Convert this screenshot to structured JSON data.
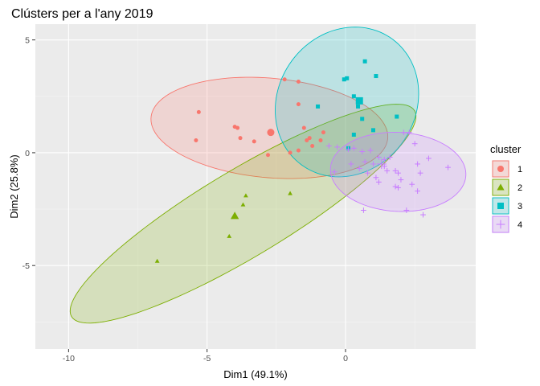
{
  "chart_data": {
    "type": "scatter",
    "title": "Clústers per a l'any 2019",
    "xlabel": "Dim1 (49.1%)",
    "ylabel": "Dim2 (25.8%)",
    "xlim": [
      -11.2,
      4.7
    ],
    "ylim": [
      -8.7,
      5.7
    ],
    "x_ticks": [
      -10,
      -5,
      0
    ],
    "x_tick_labels": [
      "-10",
      "-5",
      "0"
    ],
    "y_ticks": [
      -5,
      0,
      5
    ],
    "y_tick_labels": [
      "-5",
      "0",
      "5"
    ],
    "grid": true,
    "legend": {
      "title": "cluster",
      "position": "right"
    },
    "series": [
      {
        "name": "1",
        "color": "#F8766D",
        "shape": "circle",
        "points": [
          [
            -5.3,
            1.8
          ],
          [
            -5.4,
            0.55
          ],
          [
            -4.0,
            1.15
          ],
          [
            -3.9,
            1.1
          ],
          [
            -3.8,
            0.65
          ],
          [
            -3.3,
            0.5
          ],
          [
            -2.2,
            3.25
          ],
          [
            -1.7,
            3.15
          ],
          [
            -1.7,
            2.15
          ],
          [
            -1.5,
            1.1
          ],
          [
            -1.4,
            0.55
          ],
          [
            -1.3,
            0.65
          ],
          [
            -1.2,
            0.3
          ],
          [
            -0.9,
            0.55
          ],
          [
            -1.7,
            0.1
          ],
          [
            -2.0,
            0.0
          ],
          [
            -2.8,
            -0.1
          ],
          [
            -0.8,
            0.9
          ]
        ],
        "centroid": [
          -2.7,
          0.9
        ],
        "ellipse": {
          "cx": -2.75,
          "cy": 1.1,
          "rx": 4.3,
          "ry": 2.2,
          "angle_deg": -7
        }
      },
      {
        "name": "2",
        "color": "#7CAE00",
        "shape": "triangle",
        "points": [
          [
            -6.8,
            -4.8
          ],
          [
            -4.2,
            -3.7
          ],
          [
            -3.6,
            -1.9
          ],
          [
            -3.7,
            -2.3
          ],
          [
            -2.0,
            -1.8
          ]
        ],
        "centroid": [
          -4.0,
          -2.8
        ],
        "ellipse": {
          "cx": -3.7,
          "cy": -2.7,
          "rx": 7.7,
          "ry": 1.8,
          "angle_deg": 37
        }
      },
      {
        "name": "3",
        "color": "#00BFC4",
        "shape": "square",
        "points": [
          [
            -0.05,
            3.25
          ],
          [
            0.05,
            3.3
          ],
          [
            0.7,
            4.05
          ],
          [
            1.1,
            3.4
          ],
          [
            0.3,
            2.5
          ],
          [
            0.5,
            2.35
          ],
          [
            -1.0,
            2.05
          ],
          [
            0.45,
            2.05
          ],
          [
            0.6,
            1.5
          ],
          [
            0.3,
            0.8
          ],
          [
            1.0,
            1.0
          ],
          [
            1.85,
            1.6
          ],
          [
            0.1,
            0.2
          ]
        ],
        "centroid": [
          0.5,
          2.3
        ],
        "ellipse": {
          "cx": 0.05,
          "cy": 2.25,
          "rx": 2.55,
          "ry": 3.35,
          "angle_deg": -12
        }
      },
      {
        "name": "4",
        "color": "#C77CFF",
        "shape": "plus",
        "points": [
          [
            -0.6,
            0.3
          ],
          [
            -0.3,
            0.25
          ],
          [
            0.1,
            0.15
          ],
          [
            0.3,
            0.2
          ],
          [
            0.6,
            0.05
          ],
          [
            0.9,
            0.1
          ],
          [
            1.2,
            -0.2
          ],
          [
            0.7,
            -0.4
          ],
          [
            1.0,
            -0.5
          ],
          [
            1.4,
            -0.6
          ],
          [
            1.5,
            -0.8
          ],
          [
            1.8,
            -0.8
          ],
          [
            1.9,
            -0.9
          ],
          [
            1.4,
            -0.3
          ],
          [
            2.1,
            0.9
          ],
          [
            2.3,
            0.9
          ],
          [
            2.5,
            0.4
          ],
          [
            2.6,
            -0.5
          ],
          [
            2.7,
            -0.9
          ],
          [
            1.2,
            -1.3
          ],
          [
            1.8,
            -1.5
          ],
          [
            1.9,
            -1.55
          ],
          [
            2.4,
            -1.4
          ],
          [
            2.6,
            -1.7
          ],
          [
            3.0,
            -0.25
          ],
          [
            3.7,
            -0.65
          ],
          [
            2.8,
            -2.75
          ],
          [
            2.2,
            -2.55
          ],
          [
            0.65,
            -2.55
          ],
          [
            -0.4,
            -0.85
          ],
          [
            0.2,
            -0.5
          ],
          [
            1.6,
            -0.2
          ],
          [
            0.8,
            -0.9
          ],
          [
            0.5,
            -0.7
          ],
          [
            1.1,
            -1.1
          ],
          [
            2.0,
            -1.2
          ]
        ],
        "centroid": [
          1.3,
          -0.5
        ],
        "ellipse": {
          "cx": 1.9,
          "cy": -0.85,
          "rx": 2.45,
          "ry": 1.75,
          "angle_deg": -5
        }
      }
    ]
  }
}
